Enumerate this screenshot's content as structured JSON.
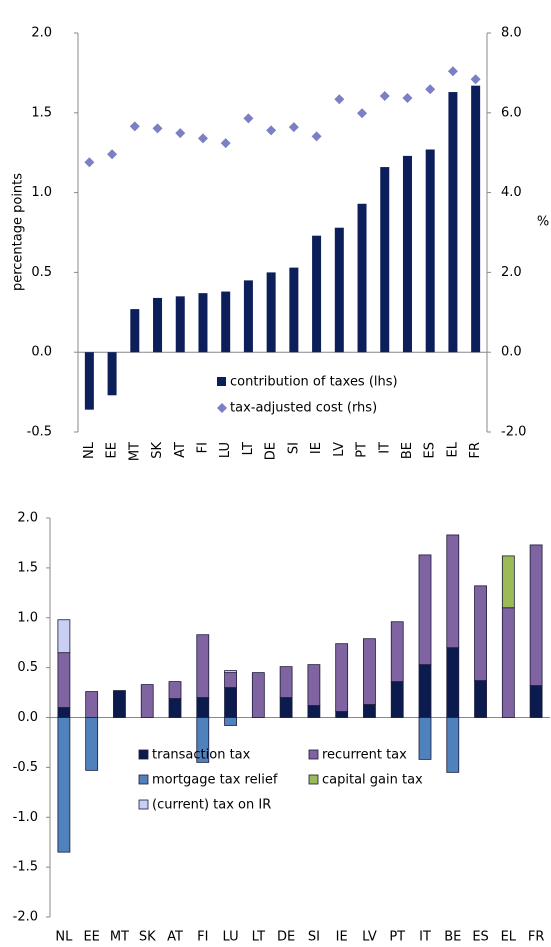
{
  "chart_data": [
    {
      "type": "combo",
      "y_label": "percentage points",
      "y2_label": "%",
      "categories": [
        "NL",
        "EE",
        "MT",
        "SK",
        "AT",
        "FI",
        "LU",
        "LT",
        "DE",
        "SI",
        "IE",
        "LV",
        "PT",
        "IT",
        "BE",
        "ES",
        "EL",
        "FR"
      ],
      "series": [
        {
          "name": "contribution of taxes (lhs)",
          "kind": "bar",
          "color": "#0c1f5b",
          "values": [
            -0.36,
            -0.27,
            0.27,
            0.34,
            0.35,
            0.37,
            0.38,
            0.45,
            0.5,
            0.53,
            0.73,
            0.78,
            0.93,
            1.16,
            1.23,
            1.27,
            1.63,
            1.67
          ]
        },
        {
          "name": "tax-adjusted cost (rhs)",
          "kind": "scatter",
          "axis": "y2",
          "color": "#7b7fc4",
          "values": [
            4.76,
            4.96,
            5.66,
            5.61,
            5.49,
            5.36,
            5.24,
            5.86,
            5.56,
            5.64,
            5.41,
            6.34,
            5.99,
            6.42,
            6.37,
            6.59,
            7.04,
            6.84
          ]
        }
      ],
      "ylim": [
        -0.5,
        2.0
      ],
      "yticks": [
        -0.5,
        {
          "value": 0,
          "label": "0.0"
        },
        0.5,
        {
          "value": 1,
          "label": "1.0"
        },
        1.5,
        {
          "value": 2,
          "label": "2.0"
        }
      ],
      "y2lim": [
        -2,
        8
      ],
      "y2ticks": [
        {
          "value": -2,
          "label": "-2.0"
        },
        {
          "value": 0,
          "label": "0.0"
        },
        {
          "value": 2,
          "label": "2.0"
        },
        {
          "value": 4,
          "label": "4.0"
        },
        {
          "value": 6,
          "label": "6.0"
        },
        {
          "value": 8,
          "label": "8.0"
        }
      ]
    },
    {
      "type": "stacked_bar",
      "categories": [
        "NL",
        "EE",
        "MT",
        "SK",
        "AT",
        "FI",
        "LU",
        "LT",
        "DE",
        "SI",
        "IE",
        "LV",
        "PT",
        "IT",
        "BE",
        "ES",
        "EL",
        "FR"
      ],
      "series": [
        {
          "name": "transaction tax",
          "color": "#0c1b4d",
          "values": [
            0.1,
            0,
            0.27,
            0,
            0.19,
            0.2,
            0.3,
            0,
            0.2,
            0.12,
            0.06,
            0.13,
            0.36,
            0.53,
            0.7,
            0.37,
            0,
            0.32
          ]
        },
        {
          "name": "recurrent tax",
          "color": "#8064a2",
          "values": [
            0.55,
            0.26,
            0,
            0.33,
            0.17,
            0.63,
            0.15,
            0.45,
            0.31,
            0.41,
            0.68,
            0.66,
            0.6,
            1.1,
            1.13,
            0.95,
            1.1,
            1.41
          ]
        },
        {
          "name": "mortgage tax relief",
          "color": "#4f81bd",
          "values": [
            -1.35,
            -0.53,
            0,
            0,
            0,
            -0.45,
            -0.08,
            0,
            0,
            0,
            0,
            0,
            0,
            -0.42,
            -0.55,
            0,
            0,
            0
          ]
        },
        {
          "name": "capital gain tax",
          "color": "#9bbb59",
          "values": [
            0,
            0,
            0,
            0,
            0,
            0,
            0,
            0,
            0,
            0,
            0,
            0,
            0,
            0,
            0,
            0,
            0.52,
            0
          ]
        },
        {
          "name": "(current) tax on IR",
          "color": "#c9cff2",
          "values": [
            0.33,
            0,
            0,
            0,
            0,
            0,
            0.02,
            0,
            0,
            0,
            0,
            0,
            0,
            0,
            0,
            0,
            0,
            0
          ]
        }
      ],
      "ylim": [
        -2,
        2
      ],
      "yticks": [
        {
          "value": -2,
          "label": "-2.0"
        },
        -1.5,
        {
          "value": -1,
          "label": "-1.0"
        },
        -0.5,
        {
          "value": 0,
          "label": "0.0"
        },
        0.5,
        {
          "value": 1,
          "label": "1.0"
        },
        1.5,
        {
          "value": 2,
          "label": "2.0"
        }
      ]
    }
  ]
}
